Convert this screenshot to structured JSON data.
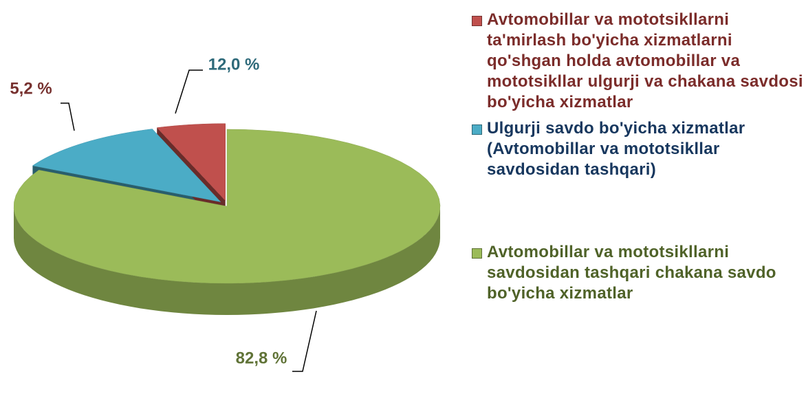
{
  "chart_data": {
    "type": "pie3d",
    "series": [
      {
        "name": "Avtomobillar va mototsikllarni ta'mirlash bo'yicha xizmatlarni qo'shgan holda avtomobillar va mototsikllar ulgurji va chakana savdosi bo'yicha xizmatlar",
        "color": "#c0504d",
        "values": [
          5.2
        ],
        "value_labels": [
          "5,2 %"
        ]
      },
      {
        "name": "Ulgurji savdo bo'yicha xizmatlar (Avtomobillar va mototsikllar savdosidan tashqari)",
        "color": "#4bacc6",
        "values": [
          12.0
        ],
        "value_labels": [
          "12,0 %"
        ]
      },
      {
        "name": "Avtomobillar va mototsikllarni savdosidan tashqari chakana savdo bo'yicha xizmatlar",
        "color": "#9bbb59",
        "values": [
          82.8
        ],
        "value_labels": [
          "82,8 %"
        ]
      }
    ],
    "legend": "right"
  }
}
